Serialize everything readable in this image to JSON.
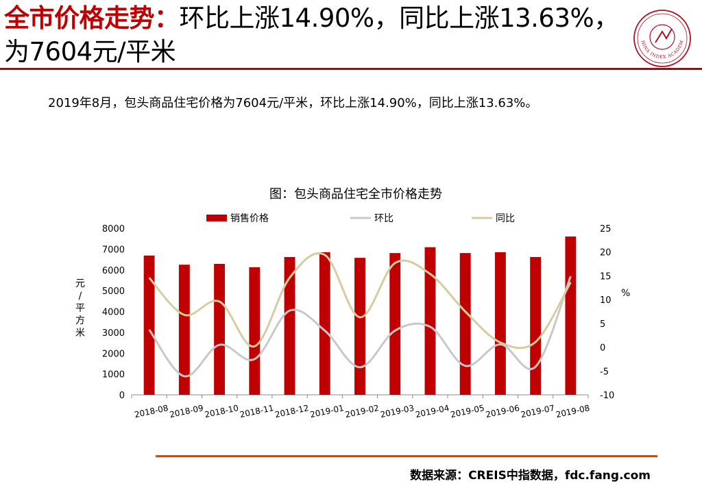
{
  "headline": {
    "accent": "全市价格走势：",
    "rest": "环比上涨14.90%，同比上涨13.63%，为7604元/平米"
  },
  "logo": {
    "icon": "china-index-academy-seal-icon",
    "text": "CHINA INDEX ACADEMY"
  },
  "summary": "2019年8月，包头商品住宅价格为7604元/平米，环比上涨14.90%，同比上涨13.63%。",
  "colors": {
    "accent": "#c00000",
    "bar": "#c00000",
    "mom_line": "#c8c8c8",
    "yoy_line": "#d6cca0",
    "footer_rule": "#b5531b"
  },
  "chart_data": {
    "type": "bar",
    "title": "图：包头商品住宅全市价格走势",
    "categories": [
      "2018-08",
      "2018-09",
      "2018-10",
      "2018-11",
      "2018-12",
      "2019-01",
      "2019-02",
      "2019-03",
      "2019-04",
      "2019-05",
      "2019-06",
      "2019-07",
      "2019-08"
    ],
    "ylabel": "元/平方米",
    "y2label": "%",
    "ylim": [
      0,
      8000
    ],
    "y2lim": [
      -10,
      25
    ],
    "yticks": [
      "0",
      "1000",
      "2000",
      "3000",
      "4000",
      "5000",
      "6000",
      "7000",
      "8000"
    ],
    "y2ticks": [
      "-10",
      "-5",
      "0",
      "5",
      "10",
      "15",
      "20",
      "25"
    ],
    "legend_position": "top",
    "grid": false,
    "series": [
      {
        "name": "销售价格",
        "type": "bar",
        "axis": "left",
        "values": [
          6690,
          6250,
          6290,
          6130,
          6620,
          6850,
          6580,
          6810,
          7090,
          6810,
          6850,
          6620,
          7604
        ]
      },
      {
        "name": "环比",
        "type": "line",
        "axis": "right",
        "values": [
          3.7,
          -6.1,
          0.5,
          -2.5,
          7.7,
          3.5,
          -4.2,
          3.5,
          4.3,
          -3.9,
          0.6,
          -4.1,
          14.9
        ]
      },
      {
        "name": "同比",
        "type": "line",
        "axis": "right",
        "values": [
          14.6,
          6.8,
          9.6,
          0.2,
          14.6,
          19.4,
          6.3,
          17.7,
          15.4,
          7.5,
          1.0,
          1.1,
          13.63
        ]
      }
    ]
  },
  "footer": {
    "source": "数据来源：CREIS中指数据，fdc.fang.com"
  }
}
